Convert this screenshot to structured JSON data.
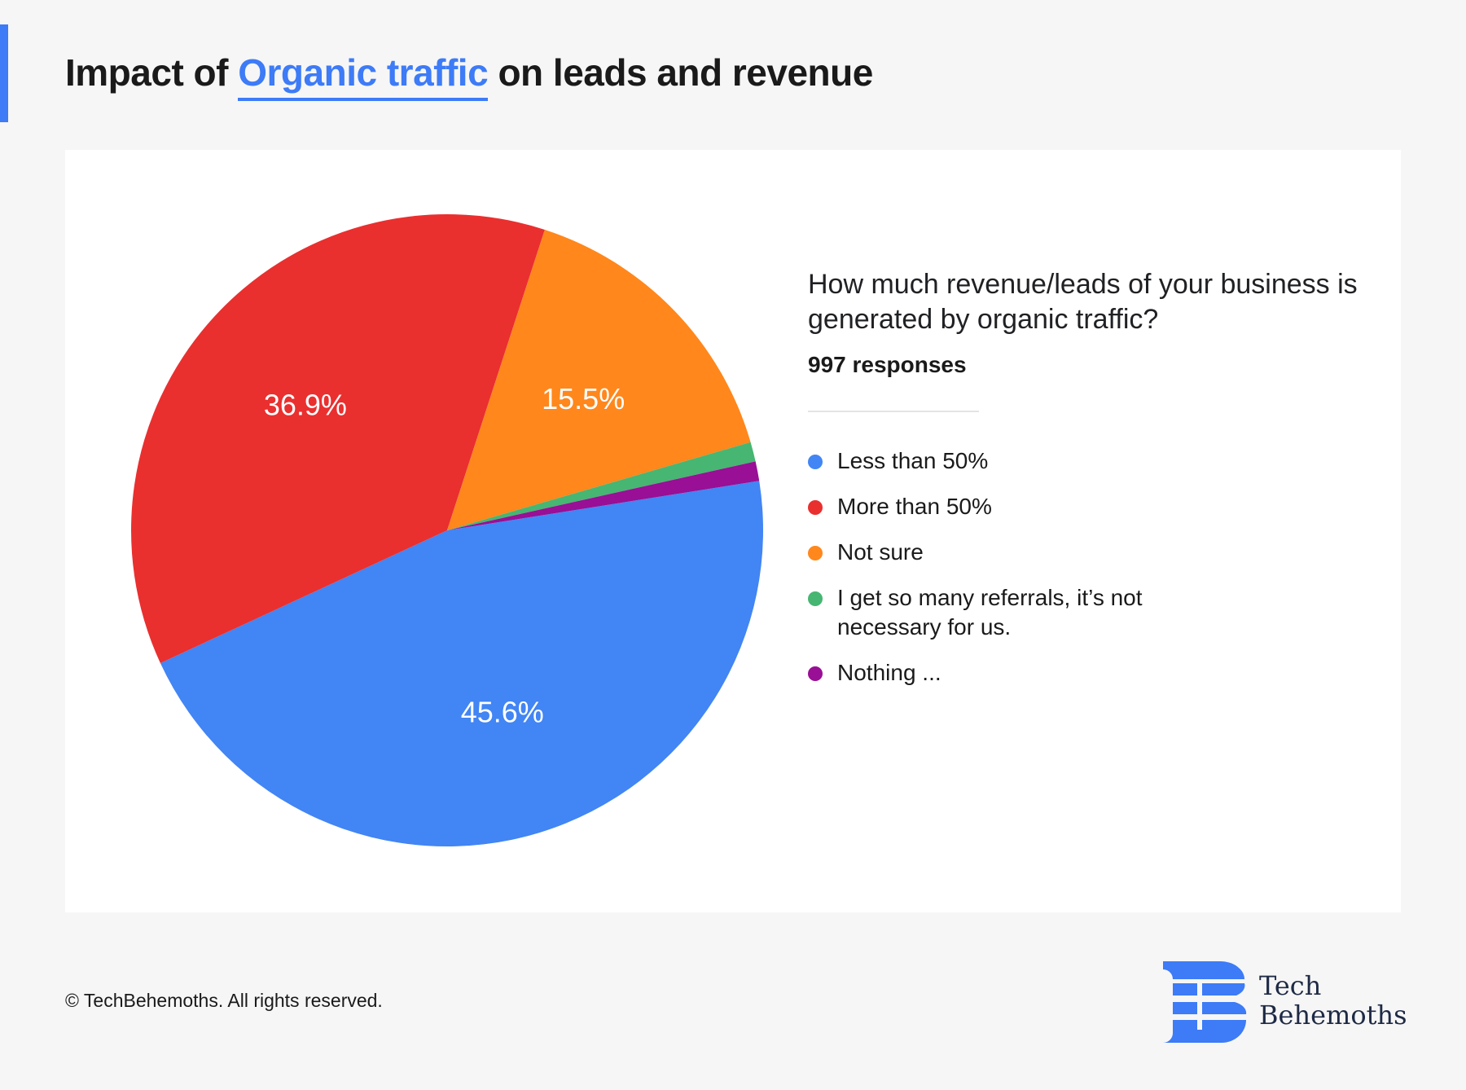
{
  "header": {
    "title_prefix": "Impact of ",
    "title_highlight": "Organic traffic",
    "title_suffix": " on leads and revenue"
  },
  "chart_data": {
    "type": "pie",
    "title": "How much revenue/leads of your business is generated by organic traffic?",
    "responses": "997 responses",
    "legend_position": "right",
    "slices": [
      {
        "label": "Less than 50%",
        "value": 45.6,
        "data_label": "45.6%",
        "color": "#4285f4"
      },
      {
        "label": "More than 50%",
        "value": 36.9,
        "data_label": "36.9%",
        "color": "#ea2f2f"
      },
      {
        "label": "Not sure",
        "value": 15.5,
        "data_label": "15.5%",
        "color": "#ff871c"
      },
      {
        "label": "I get so many referrals, it’s not necessary for us.",
        "value": 1.0,
        "data_label": "",
        "color": "#46b672"
      },
      {
        "label": "Nothing ...",
        "value": 1.0,
        "data_label": "",
        "color": "#990f95"
      }
    ]
  },
  "footer": {
    "copyright": "© TechBehemoths. All rights reserved."
  },
  "logo": {
    "line1": "Tech",
    "line2": "Behemoths"
  },
  "colors": {
    "accent": "#3d7bf7"
  }
}
